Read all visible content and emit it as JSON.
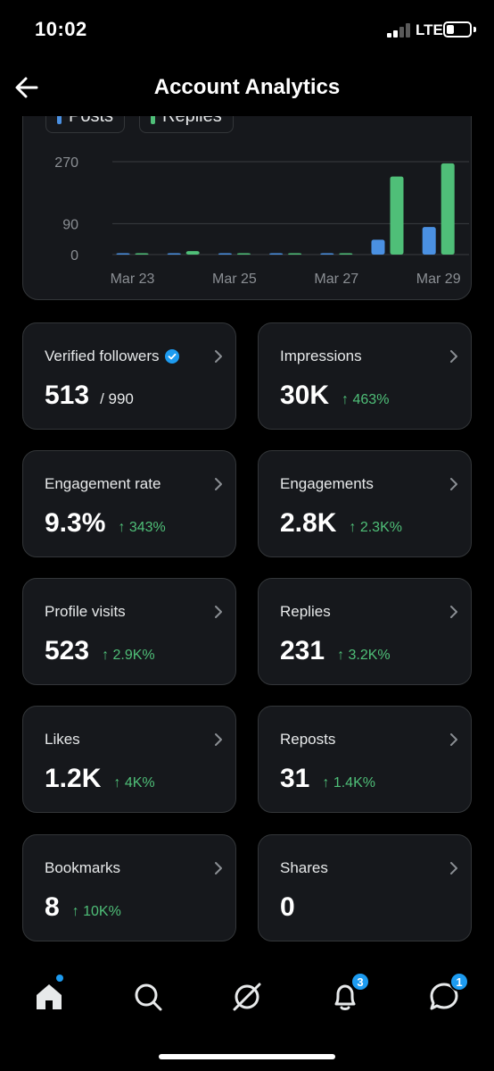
{
  "status_bar": {
    "time": "10:02",
    "network": "LTE"
  },
  "header": {
    "title": "Account Analytics",
    "back_icon": "arrow-left-icon"
  },
  "chart_data": {
    "type": "bar",
    "categories": [
      "Mar 23",
      "Mar 24",
      "Mar 25",
      "Mar 26",
      "Mar 27",
      "Mar 28",
      "Mar 29"
    ],
    "x_tick_labels": [
      "Mar 23",
      "Mar 25",
      "Mar 27",
      "Mar 29"
    ],
    "y_ticks": [
      0,
      90,
      270
    ],
    "ylim": [
      0,
      300
    ],
    "grid": true,
    "legend_position": "top-left",
    "series": [
      {
        "name": "Posts",
        "color": "#4a90e2",
        "values": [
          0,
          0,
          0,
          0,
          0,
          43,
          80
        ]
      },
      {
        "name": "Replies",
        "color": "#4fbf78",
        "values": [
          1,
          10,
          1,
          0,
          3,
          227,
          265
        ]
      }
    ]
  },
  "stats": [
    {
      "label": "Verified followers",
      "value": "513",
      "sub": "/ 990",
      "verified_icon": "verified-badge-icon"
    },
    {
      "label": "Impressions",
      "value": "30K",
      "change": "↑ 463%"
    },
    {
      "label": "Engagement rate",
      "value": "9.3%",
      "change": "↑ 343%"
    },
    {
      "label": "Engagements",
      "value": "2.8K",
      "change": "↑ 2.3K%"
    },
    {
      "label": "Profile visits",
      "value": "523",
      "change": "↑ 2.9K%"
    },
    {
      "label": "Replies",
      "value": "231",
      "change": "↑ 3.2K%"
    },
    {
      "label": "Likes",
      "value": "1.2K",
      "change": "↑ 4K%"
    },
    {
      "label": "Reposts",
      "value": "31",
      "change": "↑ 1.4K%"
    },
    {
      "label": "Bookmarks",
      "value": "8",
      "change": "↑ 10K%"
    },
    {
      "label": "Shares",
      "value": "0",
      "change": ""
    }
  ],
  "tab_bar": {
    "items": [
      {
        "name": "home",
        "icon": "home-icon"
      },
      {
        "name": "search",
        "icon": "search-icon"
      },
      {
        "name": "grok",
        "icon": "grok-icon"
      },
      {
        "name": "notifications",
        "icon": "bell-icon",
        "badge": "3"
      },
      {
        "name": "messages",
        "icon": "message-icon",
        "badge": "1"
      }
    ]
  },
  "colors": {
    "accent": "#1d9bf0",
    "positive": "#4fbf78",
    "card_bg": "#16181c",
    "border": "#333639"
  }
}
